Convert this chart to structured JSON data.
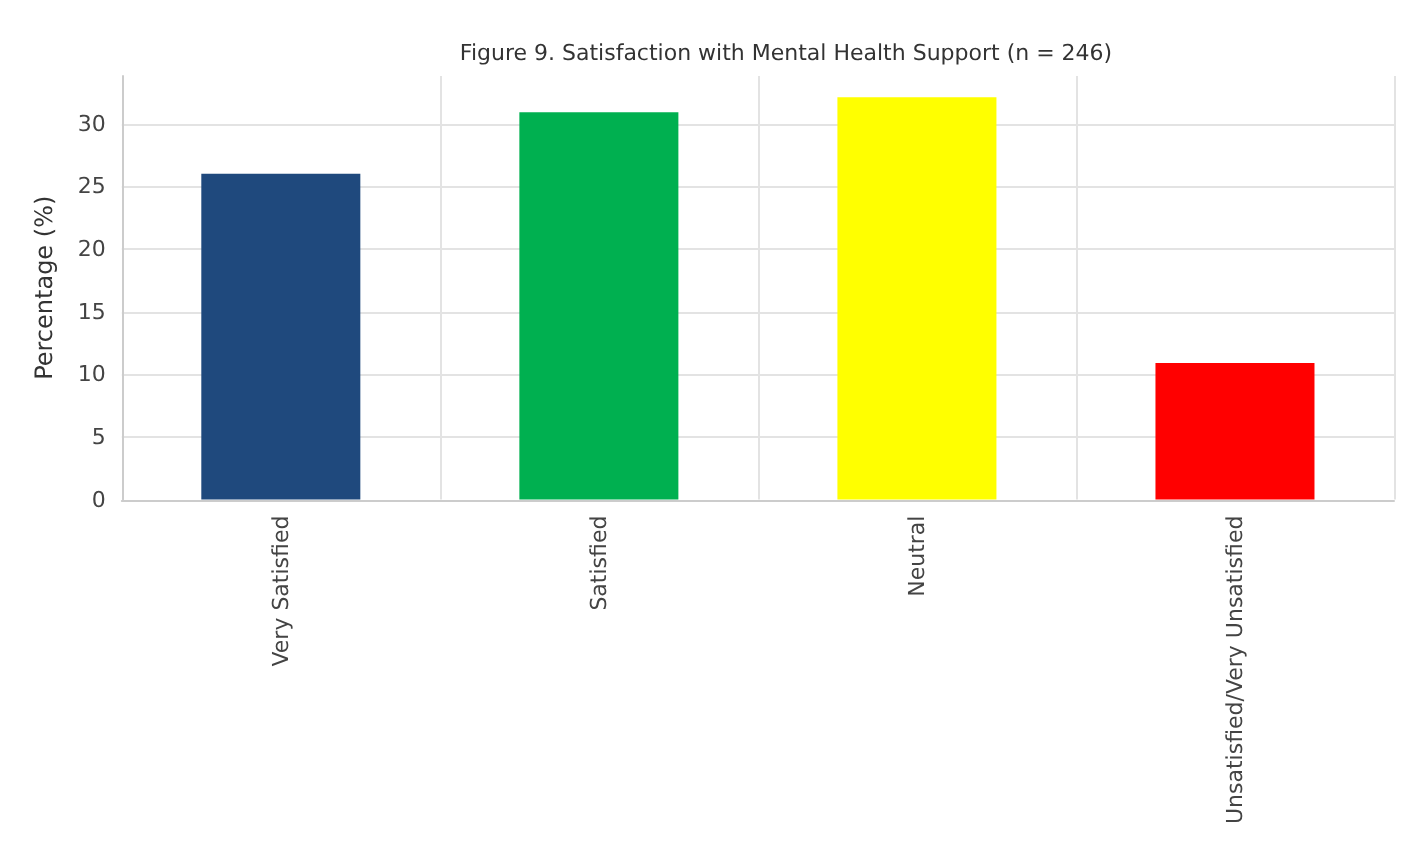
{
  "chart_data": {
    "type": "bar",
    "title": "Figure 9. Satisfaction with Mental Health Support (n = 246)",
    "ylabel": "Percentage (%)",
    "categories": [
      "Very Satisfied",
      "Satisfied",
      "Neutral",
      "Unsatisfied/Very Unsatisfied"
    ],
    "values": [
      26.0,
      30.9,
      32.1,
      10.9
    ],
    "colors": [
      "#1f497d",
      "#00b050",
      "#ffff00",
      "#ff0000"
    ],
    "ylim": [
      0,
      33.8
    ],
    "yticks": [
      0,
      5,
      10,
      15,
      20,
      25,
      30
    ],
    "grid": true
  }
}
